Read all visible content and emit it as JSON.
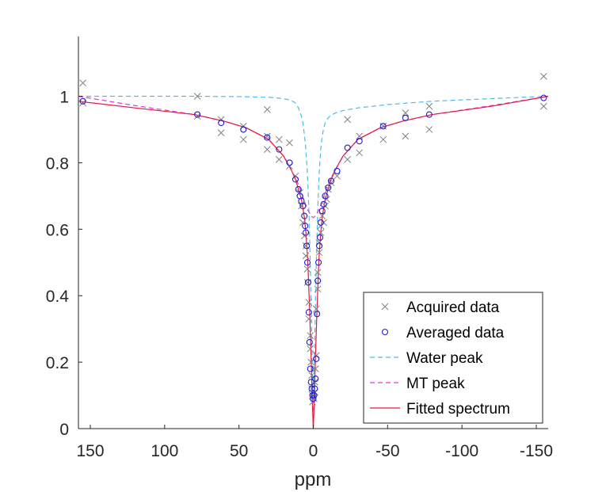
{
  "chart_data": {
    "type": "scatter",
    "title": "",
    "xlabel": "ppm",
    "ylabel": "",
    "x_reversed": true,
    "xlim": [
      158,
      -158
    ],
    "ylim": [
      0,
      1.18
    ],
    "x_ticks": [
      150,
      100,
      50,
      0,
      -50,
      -100,
      -150
    ],
    "x_tick_labels": [
      "150",
      "100",
      "50",
      "0",
      "-50",
      "-100",
      "-150"
    ],
    "y_ticks": [
      0,
      0.2,
      0.4,
      0.6,
      0.8,
      1
    ],
    "y_tick_labels": [
      "0",
      "0.2",
      "0.4",
      "0.6",
      "0.8",
      "1"
    ],
    "grid": false,
    "legend_position": "bottom-right",
    "legend": [
      {
        "key": "acquired",
        "label": "Acquired data"
      },
      {
        "key": "averaged",
        "label": "Averaged data"
      },
      {
        "key": "water",
        "label": "Water peak"
      },
      {
        "key": "mt",
        "label": "MT peak"
      },
      {
        "key": "fitted",
        "label": "Fitted spectrum"
      }
    ],
    "colors": {
      "acquired": "#808080",
      "averaged": "#1f1fd6",
      "water": "#4cbce8",
      "mt": "#e633e6",
      "fitted": "#e6193c"
    },
    "series": [
      {
        "key": "acquired",
        "name": "Acquired data",
        "style": "marker-x",
        "points": [
          [
            155,
            1.04
          ],
          [
            155,
            0.98
          ],
          [
            78,
            1.0
          ],
          [
            78,
            0.94
          ],
          [
            62,
            0.93
          ],
          [
            62,
            0.89
          ],
          [
            47,
            0.91
          ],
          [
            47,
            0.87
          ],
          [
            31,
            0.96
          ],
          [
            31,
            0.84
          ],
          [
            31,
            0.88
          ],
          [
            23,
            0.87
          ],
          [
            23,
            0.81
          ],
          [
            16,
            0.86
          ],
          [
            16,
            0.79
          ],
          [
            12,
            0.76
          ],
          [
            9,
            0.71
          ],
          [
            8,
            0.67
          ],
          [
            7,
            0.62
          ],
          [
            6,
            0.58
          ],
          [
            5,
            0.55
          ],
          [
            5,
            0.52
          ],
          [
            4,
            0.48
          ],
          [
            4,
            0.44
          ],
          [
            3,
            0.38
          ],
          [
            3,
            0.33
          ],
          [
            2,
            0.28
          ],
          [
            2,
            0.24
          ],
          [
            1.5,
            0.2
          ],
          [
            1,
            0.16
          ],
          [
            1,
            0.12
          ],
          [
            0.5,
            0.1
          ],
          [
            0.5,
            0.08
          ],
          [
            -0.5,
            0.09
          ],
          [
            -1,
            0.11
          ],
          [
            -1,
            0.14
          ],
          [
            -1.5,
            0.18
          ],
          [
            -2,
            0.22
          ],
          [
            -2,
            0.36
          ],
          [
            -3,
            0.42
          ],
          [
            -3,
            0.47
          ],
          [
            -4,
            0.53
          ],
          [
            -4,
            0.56
          ],
          [
            -5,
            0.61
          ],
          [
            -5,
            0.59
          ],
          [
            -6,
            0.64
          ],
          [
            -7,
            0.62
          ],
          [
            -8,
            0.67
          ],
          [
            -9,
            0.69
          ],
          [
            -10,
            0.72
          ],
          [
            -12,
            0.74
          ],
          [
            -16,
            0.76
          ],
          [
            -23,
            0.93
          ],
          [
            -23,
            0.81
          ],
          [
            -31,
            0.88
          ],
          [
            -31,
            0.83
          ],
          [
            -47,
            0.91
          ],
          [
            -47,
            0.87
          ],
          [
            -62,
            0.95
          ],
          [
            -62,
            0.88
          ],
          [
            -78,
            0.97
          ],
          [
            -78,
            0.9
          ],
          [
            -155,
            1.06
          ],
          [
            -155,
            0.97
          ]
        ]
      },
      {
        "key": "averaged",
        "name": "Averaged data",
        "style": "marker-o",
        "points": [
          [
            155,
            0.985
          ],
          [
            78,
            0.945
          ],
          [
            62,
            0.92
          ],
          [
            47,
            0.9
          ],
          [
            31,
            0.876
          ],
          [
            23,
            0.84
          ],
          [
            16,
            0.8
          ],
          [
            12,
            0.75
          ],
          [
            10,
            0.72
          ],
          [
            9,
            0.7
          ],
          [
            8,
            0.685
          ],
          [
            7,
            0.67
          ],
          [
            6,
            0.64
          ],
          [
            5.5,
            0.61
          ],
          [
            5,
            0.59
          ],
          [
            4.5,
            0.55
          ],
          [
            4,
            0.5
          ],
          [
            3.5,
            0.44
          ],
          [
            3,
            0.35
          ],
          [
            2.5,
            0.26
          ],
          [
            2,
            0.18
          ],
          [
            1.5,
            0.14
          ],
          [
            1,
            0.12
          ],
          [
            0.5,
            0.1
          ],
          [
            0,
            0.09
          ],
          [
            -0.5,
            0.1
          ],
          [
            -1,
            0.12
          ],
          [
            -1.5,
            0.15
          ],
          [
            -2,
            0.21
          ],
          [
            -2.5,
            0.345
          ],
          [
            -3,
            0.445
          ],
          [
            -3.5,
            0.5
          ],
          [
            -4,
            0.55
          ],
          [
            -4.5,
            0.575
          ],
          [
            -5,
            0.62
          ],
          [
            -6,
            0.655
          ],
          [
            -7,
            0.675
          ],
          [
            -8,
            0.7
          ],
          [
            -10,
            0.725
          ],
          [
            -12,
            0.745
          ],
          [
            -16,
            0.775
          ],
          [
            -23,
            0.845
          ],
          [
            -31,
            0.865
          ],
          [
            -47,
            0.91
          ],
          [
            -62,
            0.935
          ],
          [
            -78,
            0.945
          ],
          [
            -155,
            0.995
          ]
        ]
      },
      {
        "key": "water",
        "name": "Water peak",
        "style": "dashed",
        "points": [
          [
            158,
            1.0
          ],
          [
            120,
            1.0
          ],
          [
            80,
            1.0
          ],
          [
            50,
            0.999
          ],
          [
            30,
            0.997
          ],
          [
            20,
            0.993
          ],
          [
            15,
            0.988
          ],
          [
            12,
            0.98
          ],
          [
            10,
            0.965
          ],
          [
            8,
            0.94
          ],
          [
            7,
            0.92
          ],
          [
            6,
            0.885
          ],
          [
            5,
            0.84
          ],
          [
            4,
            0.77
          ],
          [
            3.5,
            0.72
          ],
          [
            3,
            0.66
          ],
          [
            2.5,
            0.58
          ],
          [
            2,
            0.49
          ],
          [
            1.5,
            0.38
          ],
          [
            1,
            0.27
          ],
          [
            0.5,
            0.13
          ],
          [
            0,
            0.0
          ],
          [
            -0.5,
            0.13
          ],
          [
            -1,
            0.27
          ],
          [
            -1.5,
            0.38
          ],
          [
            -2,
            0.49
          ],
          [
            -2.5,
            0.58
          ],
          [
            -3,
            0.66
          ],
          [
            -3.5,
            0.72
          ],
          [
            -4,
            0.77
          ],
          [
            -5,
            0.84
          ],
          [
            -6,
            0.88
          ],
          [
            -7,
            0.905
          ],
          [
            -8,
            0.92
          ],
          [
            -10,
            0.935
          ],
          [
            -12,
            0.943
          ],
          [
            -15,
            0.95
          ],
          [
            -20,
            0.957
          ],
          [
            -30,
            0.965
          ],
          [
            -50,
            0.975
          ],
          [
            -80,
            0.985
          ],
          [
            -120,
            0.993
          ],
          [
            -158,
            1.0
          ]
        ]
      },
      {
        "key": "mt",
        "name": "MT peak",
        "style": "dashed",
        "points": [
          [
            158,
            1.0
          ],
          [
            120,
            0.972
          ],
          [
            80,
            0.945
          ],
          [
            60,
            0.925
          ],
          [
            45,
            0.905
          ],
          [
            30,
            0.87
          ],
          [
            20,
            0.82
          ],
          [
            15,
            0.78
          ],
          [
            12,
            0.755
          ],
          [
            10,
            0.735
          ],
          [
            8,
            0.71
          ],
          [
            6,
            0.685
          ],
          [
            4,
            0.66
          ],
          [
            2,
            0.645
          ],
          [
            1,
            0.638
          ],
          [
            0,
            0.635
          ],
          [
            -1,
            0.638
          ],
          [
            -2,
            0.645
          ],
          [
            -4,
            0.66
          ],
          [
            -6,
            0.685
          ],
          [
            -8,
            0.71
          ],
          [
            -10,
            0.735
          ],
          [
            -12,
            0.755
          ],
          [
            -15,
            0.78
          ],
          [
            -20,
            0.82
          ],
          [
            -30,
            0.87
          ],
          [
            -45,
            0.905
          ],
          [
            -60,
            0.925
          ],
          [
            -80,
            0.945
          ],
          [
            -120,
            0.972
          ],
          [
            -158,
            1.0
          ]
        ]
      },
      {
        "key": "fitted",
        "name": "Fitted spectrum",
        "style": "solid",
        "points": [
          [
            158,
            0.985
          ],
          [
            120,
            0.965
          ],
          [
            80,
            0.945
          ],
          [
            60,
            0.925
          ],
          [
            45,
            0.905
          ],
          [
            30,
            0.87
          ],
          [
            20,
            0.82
          ],
          [
            15,
            0.78
          ],
          [
            12,
            0.75
          ],
          [
            10,
            0.72
          ],
          [
            8,
            0.69
          ],
          [
            7,
            0.665
          ],
          [
            6,
            0.635
          ],
          [
            5,
            0.59
          ],
          [
            4,
            0.525
          ],
          [
            3.5,
            0.48
          ],
          [
            3,
            0.42
          ],
          [
            2.5,
            0.36
          ],
          [
            2,
            0.29
          ],
          [
            1.5,
            0.22
          ],
          [
            1,
            0.14
          ],
          [
            0.5,
            0.06
          ],
          [
            0,
            0.0
          ],
          [
            -0.5,
            0.06
          ],
          [
            -1,
            0.14
          ],
          [
            -1.5,
            0.22
          ],
          [
            -2,
            0.29
          ],
          [
            -2.5,
            0.36
          ],
          [
            -3,
            0.42
          ],
          [
            -3.5,
            0.48
          ],
          [
            -4,
            0.525
          ],
          [
            -5,
            0.59
          ],
          [
            -6,
            0.635
          ],
          [
            -7,
            0.665
          ],
          [
            -8,
            0.69
          ],
          [
            -10,
            0.72
          ],
          [
            -12,
            0.75
          ],
          [
            -15,
            0.78
          ],
          [
            -20,
            0.82
          ],
          [
            -30,
            0.87
          ],
          [
            -45,
            0.905
          ],
          [
            -60,
            0.925
          ],
          [
            -80,
            0.945
          ],
          [
            -120,
            0.97
          ],
          [
            -158,
            1.0
          ]
        ]
      }
    ]
  }
}
